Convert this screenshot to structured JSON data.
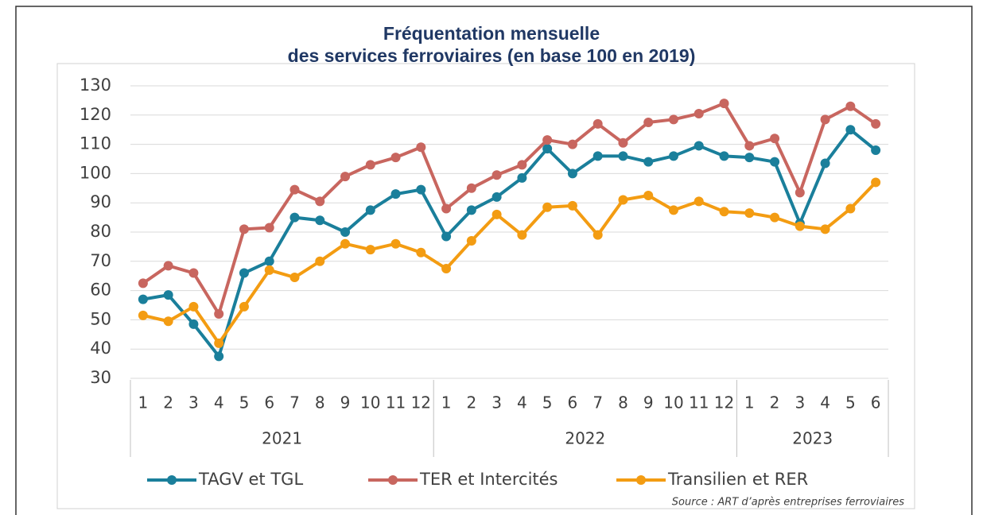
{
  "chart_data": {
    "type": "line",
    "title": [
      "Fréquentation mensuelle",
      "des services ferroviaires (en base 100 en 2019)"
    ],
    "categories": [
      "1",
      "2",
      "3",
      "4",
      "5",
      "6",
      "7",
      "8",
      "9",
      "10",
      "11",
      "12",
      "1",
      "2",
      "3",
      "4",
      "5",
      "6",
      "7",
      "8",
      "9",
      "10",
      "11",
      "12",
      "1",
      "2",
      "3",
      "4",
      "5",
      "6"
    ],
    "x_groups": [
      "2021",
      "2022",
      "2023"
    ],
    "series": [
      {
        "name": "TAGV et TGL",
        "color": "#1a7f9b",
        "values": [
          57,
          58.5,
          48.5,
          37.5,
          66,
          70,
          85,
          84,
          80,
          87.5,
          93,
          94.5,
          78.5,
          87.5,
          92,
          98.5,
          108.5,
          100,
          106,
          106,
          104,
          106,
          109.5,
          106,
          105.5,
          104,
          83,
          103.5,
          115,
          108
        ]
      },
      {
        "name": "TER et Intercités",
        "color": "#c8665f",
        "values": [
          62.5,
          68.5,
          66,
          52,
          81,
          81.5,
          94.5,
          90.5,
          99,
          103,
          105.5,
          109,
          88,
          95,
          99.5,
          103,
          111.5,
          110,
          117,
          110.5,
          117.5,
          118.5,
          120.5,
          124,
          109.5,
          112,
          93.5,
          118.5,
          123,
          117
        ]
      },
      {
        "name": "Transilien et RER",
        "color": "#f39c12",
        "values": [
          51.5,
          49.5,
          54.5,
          42,
          54.5,
          67,
          64.5,
          70,
          76,
          74,
          76,
          73,
          67.5,
          77,
          86,
          79,
          88.5,
          89,
          79,
          91,
          92.5,
          87.5,
          90.5,
          87,
          86.5,
          85,
          82,
          81,
          88,
          97
        ]
      }
    ],
    "ylim": [
      30,
      130
    ],
    "yticks": [
      30,
      40,
      50,
      60,
      70,
      80,
      90,
      100,
      110,
      120,
      130
    ],
    "grid": true,
    "source": "Source : ART d’après entreprises ferroviaires"
  }
}
